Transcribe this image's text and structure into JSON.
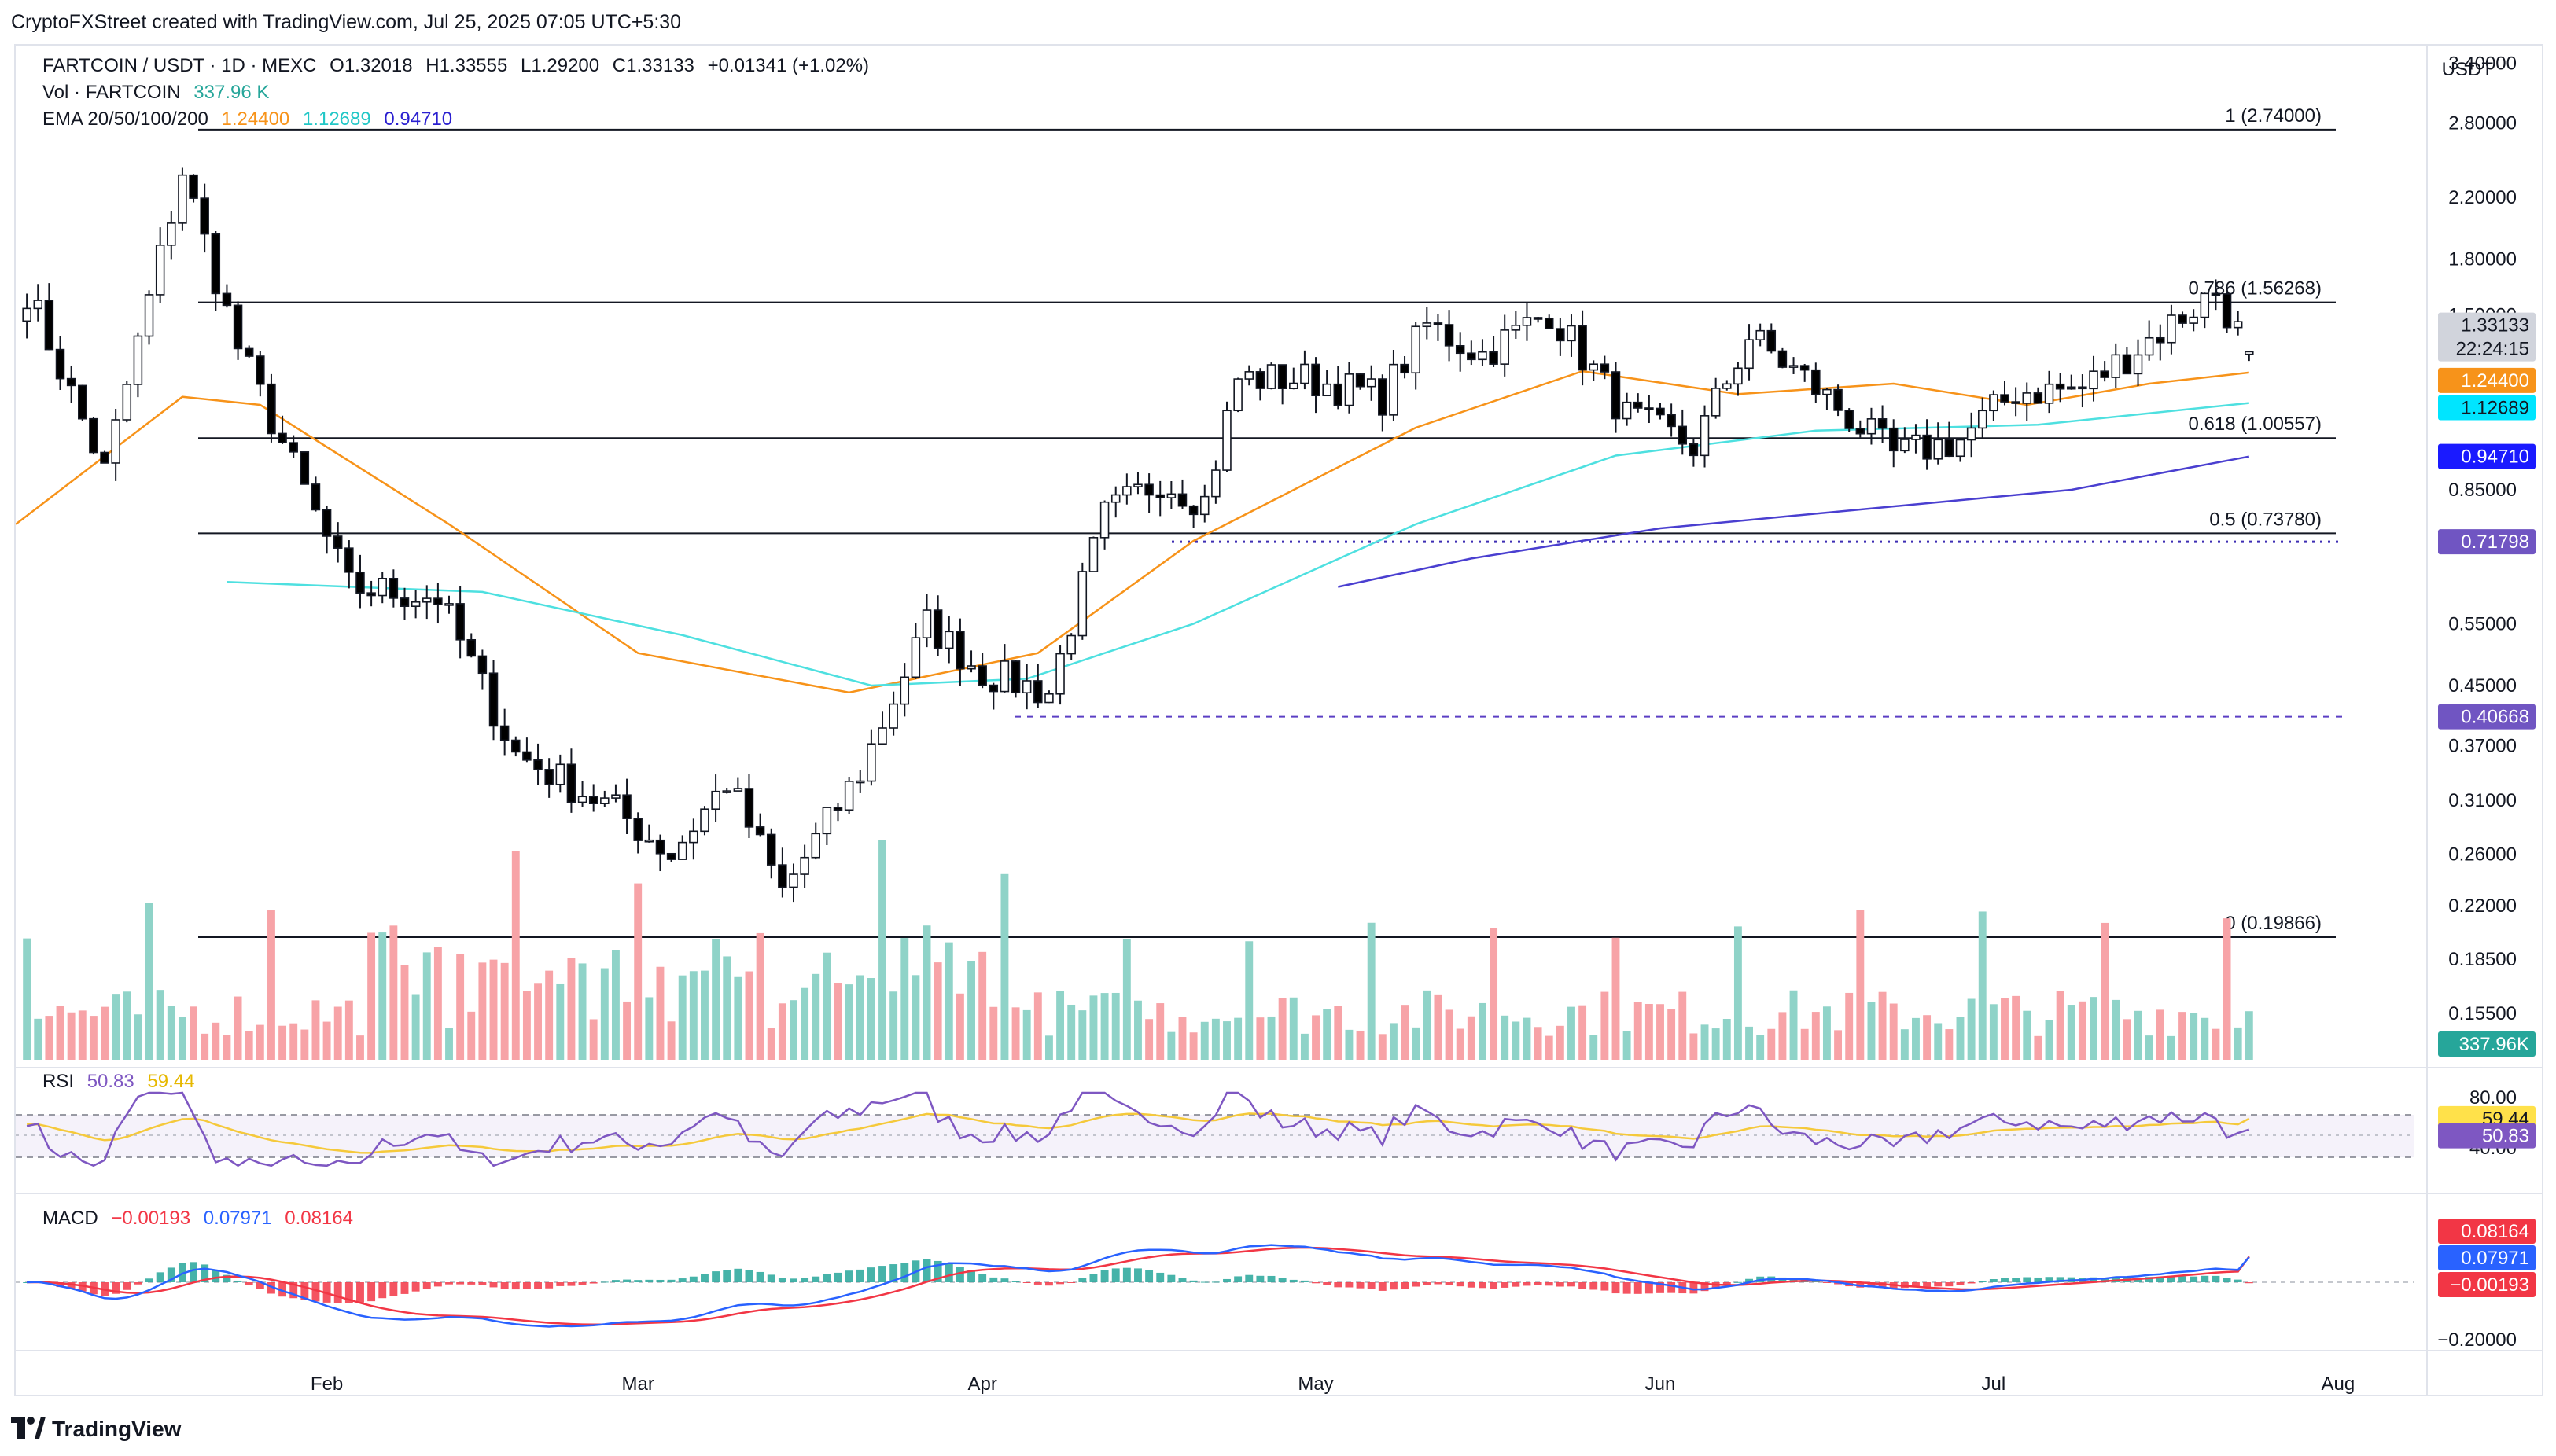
{
  "header": {
    "attribution": "CryptoFXStreet created with TradingView.com, Jul 25, 2025 07:05 UTC+5:30"
  },
  "legend": {
    "symbol": "FARTCOIN / USDT · 1D · MEXC",
    "open": "O1.32018",
    "high": "H1.33555",
    "low": "L1.29200",
    "close": "C1.33133",
    "change": "+0.01341 (+1.02%)",
    "vol_label": "Vol · FARTCOIN",
    "vol_value": "337.96 K",
    "ema_label": "EMA 20/50/100/200",
    "ema20": "1.24400",
    "ema50": "1.12689",
    "ema100": "0.94710",
    "rsi_label": "RSI",
    "rsi_value": "50.83",
    "rsi_ma": "59.44",
    "macd_label": "MACD",
    "macd_hist": "−0.00193",
    "macd_line": "0.07971",
    "macd_signal": "0.08164"
  },
  "price_axis": {
    "currency": "USDT",
    "ticks": [
      "3.40000",
      "2.80000",
      "2.20000",
      "1.80000",
      "1.50000",
      "0.85000",
      "0.55000",
      "0.45000",
      "0.37000",
      "0.31000",
      "0.26000",
      "0.22000",
      "0.18500",
      "0.15500"
    ]
  },
  "price_tags": {
    "last": "1.33133",
    "countdown": "22:24:15",
    "ema20": "1.24400",
    "ema50": "1.12689",
    "ema100": "0.94710",
    "level_a": "0.71798",
    "level_b": "0.40668",
    "volume": "337.96K"
  },
  "fib_levels": [
    {
      "label": "1 (2.74000)",
      "value": 2.74
    },
    {
      "label": "0.786 (1.56268)",
      "value": 1.56268
    },
    {
      "label": "0.618 (1.00557)",
      "value": 1.00557
    },
    {
      "label": "0.5 (0.73780)",
      "value": 0.7378
    },
    {
      "label": "0 (0.19866)",
      "value": 0.19866
    }
  ],
  "rsi_axis": {
    "ticks": [
      "80.00",
      "40.00"
    ],
    "ma_tag": "59.44",
    "rsi_tag": "50.83"
  },
  "macd_axis": {
    "ticks": [
      "−0.20000"
    ],
    "signal_tag": "0.08164",
    "macd_tag": "0.07971",
    "hist_tag": "−0.00193"
  },
  "time_axis": {
    "labels": [
      "Feb",
      "Mar",
      "Apr",
      "May",
      "Jun",
      "Jul",
      "Aug"
    ]
  },
  "footer": {
    "brand": "TradingView"
  },
  "colors": {
    "up": "#26a69a",
    "down": "#000000",
    "ema20": "#f7931a",
    "ema50": "#4ee0e0",
    "ema100": "#4a3fd0",
    "rsi": "#7e57c2",
    "rsi_ma": "#f5c93b",
    "macd": "#2962ff",
    "signal": "#f23645",
    "vol_up": "#8fd3c8",
    "vol_down": "#f7a3a7"
  },
  "chart_data": {
    "type": "candlestick",
    "title": "FARTCOIN / USDT · 1D · MEXC",
    "ylabel": "USDT",
    "y_scale": "log",
    "ylim": [
      0.13,
      3.6
    ],
    "x_range": [
      "2025-01-04",
      "2025-08-10"
    ],
    "last_bar": {
      "open": 1.32018,
      "high": 1.33555,
      "low": 1.292,
      "close": 1.33133,
      "volume_k": 337.96
    },
    "anchors": [
      {
        "date": "2025-01-05",
        "close": 1.63
      },
      {
        "date": "2025-01-12",
        "close": 0.9
      },
      {
        "date": "2025-01-19",
        "close": 2.4
      },
      {
        "date": "2025-01-24",
        "close": 1.35
      },
      {
        "date": "2025-02-03",
        "close": 0.62
      },
      {
        "date": "2025-02-11",
        "close": 0.6
      },
      {
        "date": "2025-02-18",
        "close": 0.36
      },
      {
        "date": "2025-02-27",
        "close": 0.3
      },
      {
        "date": "2025-03-04",
        "close": 0.26
      },
      {
        "date": "2025-03-09",
        "close": 0.33
      },
      {
        "date": "2025-03-14",
        "close": 0.23
      },
      {
        "date": "2025-03-21",
        "close": 0.34
      },
      {
        "date": "2025-03-27",
        "close": 0.55
      },
      {
        "date": "2025-04-01",
        "close": 0.47
      },
      {
        "date": "2025-04-07",
        "close": 0.44
      },
      {
        "date": "2025-04-12",
        "close": 0.78
      },
      {
        "date": "2025-04-17",
        "close": 0.88
      },
      {
        "date": "2025-04-21",
        "close": 0.82
      },
      {
        "date": "2025-04-24",
        "close": 1.22
      },
      {
        "date": "2025-04-30",
        "close": 1.22
      },
      {
        "date": "2025-05-07",
        "close": 1.15
      },
      {
        "date": "2025-05-11",
        "close": 1.45
      },
      {
        "date": "2025-05-16",
        "close": 1.32
      },
      {
        "date": "2025-05-22",
        "close": 1.52
      },
      {
        "date": "2025-05-29",
        "close": 1.08
      },
      {
        "date": "2025-06-04",
        "close": 0.98
      },
      {
        "date": "2025-06-09",
        "close": 1.4
      },
      {
        "date": "2025-06-14",
        "close": 1.22
      },
      {
        "date": "2025-06-22",
        "close": 0.95
      },
      {
        "date": "2025-06-28",
        "close": 1.0
      },
      {
        "date": "2025-07-03",
        "close": 1.17
      },
      {
        "date": "2025-07-09",
        "close": 1.18
      },
      {
        "date": "2025-07-14",
        "close": 1.35
      },
      {
        "date": "2025-07-21",
        "close": 1.62
      },
      {
        "date": "2025-07-24",
        "close": 1.33133
      }
    ],
    "ema20_points": [
      {
        "date": "2025-01-04",
        "value": 0.76
      },
      {
        "date": "2025-01-19",
        "value": 1.15
      },
      {
        "date": "2025-01-26",
        "value": 1.12
      },
      {
        "date": "2025-02-12",
        "value": 0.76
      },
      {
        "date": "2025-03-01",
        "value": 0.5
      },
      {
        "date": "2025-03-20",
        "value": 0.44
      },
      {
        "date": "2025-04-06",
        "value": 0.5
      },
      {
        "date": "2025-04-20",
        "value": 0.72
      },
      {
        "date": "2025-05-10",
        "value": 1.04
      },
      {
        "date": "2025-05-25",
        "value": 1.25
      },
      {
        "date": "2025-06-08",
        "value": 1.16
      },
      {
        "date": "2025-06-22",
        "value": 1.2
      },
      {
        "date": "2025-07-04",
        "value": 1.12
      },
      {
        "date": "2025-07-15",
        "value": 1.2
      },
      {
        "date": "2025-07-24",
        "value": 1.244
      }
    ],
    "ema50_points": [
      {
        "date": "2025-01-23",
        "value": 0.63
      },
      {
        "date": "2025-02-15",
        "value": 0.61
      },
      {
        "date": "2025-03-05",
        "value": 0.53
      },
      {
        "date": "2025-03-22",
        "value": 0.45
      },
      {
        "date": "2025-04-05",
        "value": 0.46
      },
      {
        "date": "2025-04-20",
        "value": 0.55
      },
      {
        "date": "2025-05-10",
        "value": 0.76
      },
      {
        "date": "2025-05-28",
        "value": 0.95
      },
      {
        "date": "2025-06-15",
        "value": 1.03
      },
      {
        "date": "2025-07-05",
        "value": 1.05
      },
      {
        "date": "2025-07-24",
        "value": 1.12689
      }
    ],
    "ema100_points": [
      {
        "date": "2025-05-03",
        "value": 0.62
      },
      {
        "date": "2025-05-15",
        "value": 0.68
      },
      {
        "date": "2025-06-01",
        "value": 0.75
      },
      {
        "date": "2025-06-20",
        "value": 0.8
      },
      {
        "date": "2025-07-08",
        "value": 0.85
      },
      {
        "date": "2025-07-24",
        "value": 0.9471
      }
    ],
    "rsi": {
      "ylim": [
        0,
        100
      ],
      "ticks": [
        80,
        40
      ],
      "latest": 50.83,
      "ma_latest": 59.44
    },
    "macd": {
      "latest_hist": -0.00193,
      "latest_macd": 0.07971,
      "latest_signal": 0.08164
    },
    "volume": {
      "latest_k": 337.96
    }
  }
}
